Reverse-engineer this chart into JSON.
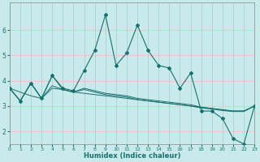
{
  "xlabel": "Humidex (Indice chaleur)",
  "background_color": "#c8eaea",
  "grid_color_h": "#e8d8d8",
  "grid_color_v": "#b8d8d8",
  "line_color": "#1a7070",
  "x_values": [
    0,
    1,
    2,
    3,
    4,
    5,
    6,
    7,
    8,
    9,
    10,
    11,
    12,
    13,
    14,
    15,
    16,
    17,
    18,
    19,
    20,
    21,
    22,
    23
  ],
  "series1": [
    3.7,
    3.2,
    3.9,
    3.3,
    4.2,
    3.7,
    3.6,
    4.4,
    5.2,
    6.6,
    4.6,
    5.1,
    6.2,
    5.2,
    4.6,
    4.5,
    3.7,
    4.3,
    2.8,
    2.8,
    2.5,
    1.7,
    1.5,
    3.0
  ],
  "series2": [
    3.7,
    3.55,
    3.4,
    3.3,
    3.7,
    3.65,
    3.55,
    3.5,
    3.45,
    3.4,
    3.35,
    3.3,
    3.25,
    3.2,
    3.15,
    3.1,
    3.05,
    3.0,
    2.95,
    2.9,
    2.85,
    2.8,
    2.8,
    3.0
  ],
  "series3": [
    3.7,
    3.2,
    3.9,
    3.3,
    4.2,
    3.65,
    3.55,
    3.7,
    3.6,
    3.5,
    3.45,
    3.4,
    3.3,
    3.25,
    3.2,
    3.15,
    3.1,
    3.05,
    2.95,
    2.9,
    2.85,
    2.8,
    2.8,
    3.0
  ],
  "series4": [
    3.7,
    3.2,
    3.9,
    3.3,
    3.8,
    3.65,
    3.55,
    3.65,
    3.55,
    3.45,
    3.4,
    3.35,
    3.25,
    3.2,
    3.15,
    3.1,
    3.05,
    3.0,
    2.92,
    2.88,
    2.82,
    2.78,
    2.78,
    3.0
  ],
  "xlim": [
    0,
    23
  ],
  "ylim": [
    1.5,
    7.1
  ],
  "yticks": [
    2,
    3,
    4,
    5,
    6
  ],
  "xticks": [
    0,
    1,
    2,
    3,
    4,
    5,
    6,
    7,
    8,
    9,
    10,
    11,
    12,
    13,
    14,
    15,
    16,
    17,
    18,
    19,
    20,
    21,
    22,
    23
  ]
}
